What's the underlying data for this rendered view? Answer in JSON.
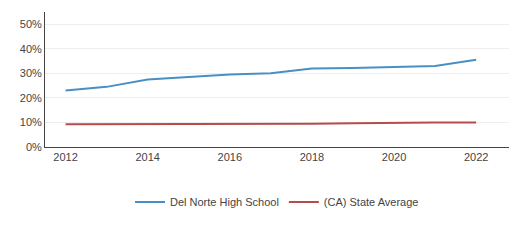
{
  "chart_data": {
    "type": "line",
    "x": [
      2012,
      2013,
      2014,
      2015,
      2016,
      2017,
      2018,
      2019,
      2020,
      2021,
      2022
    ],
    "series": [
      {
        "name": "Del Norte High School",
        "color": "#4a8fc4",
        "values": [
          0.23,
          0.245,
          0.275,
          0.285,
          0.295,
          0.3,
          0.32,
          0.322,
          0.325,
          0.33,
          0.355
        ]
      },
      {
        "name": "(CA) State Average",
        "color": "#b84c4c",
        "values": [
          0.093,
          0.093,
          0.093,
          0.093,
          0.093,
          0.093,
          0.095,
          0.097,
          0.1,
          0.1,
          0.1
        ]
      }
    ],
    "xlim": [
      2011.5,
      2022.8
    ],
    "ylim": [
      0,
      0.55
    ],
    "xticks": [
      2012,
      2014,
      2016,
      2018,
      2020,
      2022
    ],
    "yticks": [
      {
        "value": 0.0,
        "label": "0%"
      },
      {
        "value": 0.1,
        "label": "10%"
      },
      {
        "value": 0.2,
        "label": "20%"
      },
      {
        "value": 0.3,
        "label": "30%"
      },
      {
        "value": 0.4,
        "label": "40%"
      },
      {
        "value": 0.5,
        "label": "50%"
      }
    ],
    "grid": true,
    "legend": "bottom"
  }
}
